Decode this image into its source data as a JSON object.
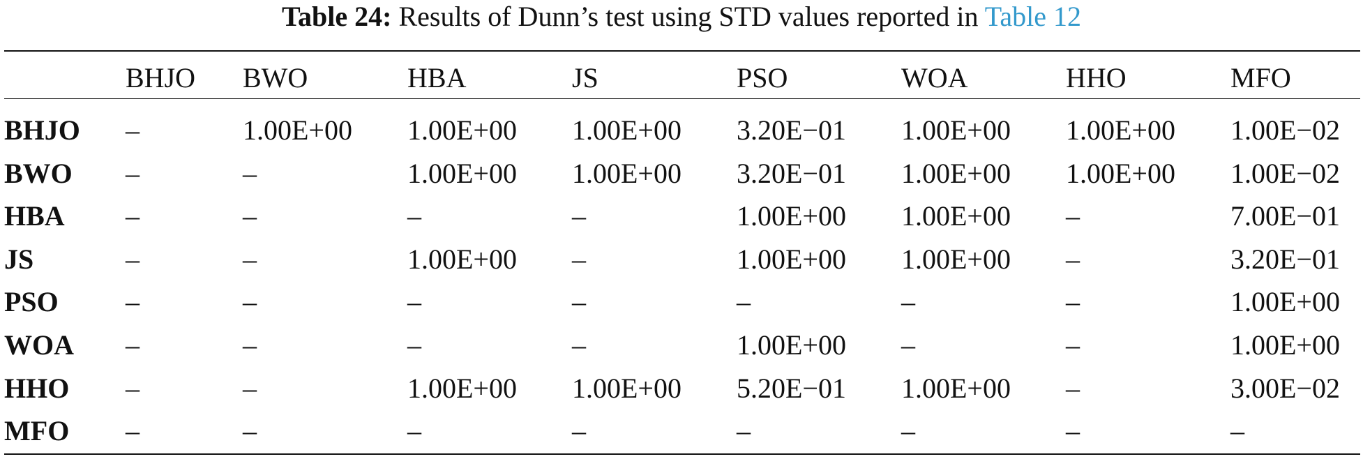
{
  "caption": {
    "label": "Table 24:",
    "text": "Results of Dunn’s test using STD values reported in ",
    "link": "Table 12"
  },
  "table": {
    "columns": [
      "BHJO",
      "BWO",
      "HBA",
      "JS",
      "PSO",
      "WOA",
      "HHO",
      "MFO"
    ],
    "rows": [
      {
        "label": "BHJO",
        "cells": [
          "–",
          "1.00E+00",
          "1.00E+00",
          "1.00E+00",
          "3.20E−01",
          "1.00E+00",
          "1.00E+00",
          "1.00E−02"
        ],
        "bold": [
          false,
          false,
          false,
          false,
          false,
          false,
          false,
          true
        ]
      },
      {
        "label": "BWO",
        "cells": [
          "–",
          "–",
          "1.00E+00",
          "1.00E+00",
          "3.20E−01",
          "1.00E+00",
          "1.00E+00",
          "1.00E−02"
        ],
        "bold": [
          false,
          false,
          false,
          false,
          false,
          false,
          false,
          true
        ]
      },
      {
        "label": "HBA",
        "cells": [
          "–",
          "–",
          "–",
          "–",
          "1.00E+00",
          "1.00E+00",
          "–",
          "7.00E−01"
        ],
        "bold": [
          false,
          false,
          false,
          false,
          false,
          false,
          false,
          false
        ]
      },
      {
        "label": "JS",
        "cells": [
          "–",
          "–",
          "1.00E+00",
          "–",
          "1.00E+00",
          "1.00E+00",
          "–",
          "3.20E−01"
        ],
        "bold": [
          false,
          false,
          false,
          false,
          false,
          false,
          false,
          false
        ]
      },
      {
        "label": "PSO",
        "cells": [
          "–",
          "–",
          "–",
          "–",
          "–",
          "–",
          "–",
          "1.00E+00"
        ],
        "bold": [
          false,
          false,
          false,
          false,
          false,
          false,
          false,
          false
        ]
      },
      {
        "label": "WOA",
        "cells": [
          "–",
          "–",
          "–",
          "–",
          "1.00E+00",
          "–",
          "–",
          "1.00E+00"
        ],
        "bold": [
          false,
          false,
          false,
          false,
          false,
          false,
          false,
          false
        ]
      },
      {
        "label": "HHO",
        "cells": [
          "–",
          "–",
          "1.00E+00",
          "1.00E+00",
          "5.20E−01",
          "1.00E+00",
          "–",
          "3.00E−02"
        ],
        "bold": [
          false,
          false,
          false,
          false,
          false,
          false,
          false,
          true
        ]
      },
      {
        "label": "MFO",
        "cells": [
          "–",
          "–",
          "–",
          "–",
          "–",
          "–",
          "–",
          "–"
        ],
        "bold": [
          false,
          false,
          false,
          false,
          false,
          false,
          false,
          false
        ]
      }
    ]
  },
  "colors": {
    "text": "#111111",
    "link": "#3399cc"
  }
}
